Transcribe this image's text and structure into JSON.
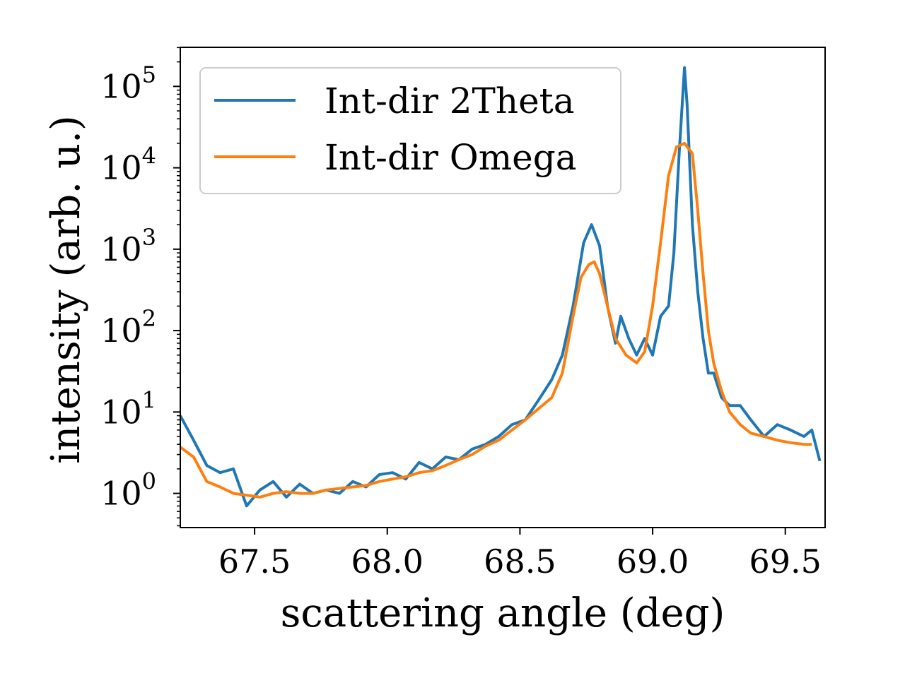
{
  "chart_data": {
    "type": "line",
    "xlabel": "scattering angle (deg)",
    "ylabel": "intensity (arb. u.)",
    "xlim": [
      67.22,
      69.65
    ],
    "ylim_log10": [
      -0.42,
      5.48
    ],
    "yscale": "log",
    "grid": false,
    "legend_position": "top-left",
    "x_ticks": [
      67.5,
      68.0,
      68.5,
      69.0,
      69.5
    ],
    "x_tick_labels": [
      "67.5",
      "68.0",
      "68.5",
      "69.0",
      "69.5"
    ],
    "y_ticks": [
      0,
      1,
      2,
      3,
      4,
      5
    ],
    "y_tick_labels": [
      "10^0",
      "10^1",
      "10^2",
      "10^3",
      "10^4",
      "10^5"
    ],
    "series": [
      {
        "name": "Int-dir 2Theta",
        "color": "#1f77b4",
        "x": [
          67.22,
          67.27,
          67.32,
          67.37,
          67.42,
          67.47,
          67.52,
          67.57,
          67.62,
          67.67,
          67.72,
          67.77,
          67.82,
          67.87,
          67.92,
          67.97,
          68.02,
          68.07,
          68.12,
          68.17,
          68.22,
          68.27,
          68.32,
          68.37,
          68.42,
          68.47,
          68.52,
          68.57,
          68.62,
          68.66,
          68.7,
          68.74,
          68.77,
          68.8,
          68.83,
          68.86,
          68.88,
          68.91,
          68.94,
          68.97,
          69.0,
          69.03,
          69.06,
          69.08,
          69.1,
          69.12,
          69.13,
          69.15,
          69.17,
          69.19,
          69.21,
          69.23,
          69.26,
          69.29,
          69.33,
          69.37,
          69.42,
          69.47,
          69.52,
          69.57,
          69.6,
          69.63
        ],
        "y": [
          9,
          4.5,
          2.2,
          1.8,
          2.0,
          0.7,
          1.1,
          1.4,
          0.9,
          1.3,
          1.0,
          1.1,
          1.0,
          1.4,
          1.2,
          1.7,
          1.8,
          1.5,
          2.4,
          2.0,
          2.8,
          2.6,
          3.5,
          4.0,
          5.0,
          7.0,
          8.0,
          14,
          25,
          50,
          200,
          1200,
          2000,
          1100,
          200,
          70,
          150,
          80,
          50,
          80,
          50,
          150,
          200,
          900,
          15000,
          170000,
          60000,
          2000,
          300,
          80,
          30,
          30,
          15,
          12,
          12,
          8,
          5,
          7,
          6,
          5,
          6,
          2.5
        ]
      },
      {
        "name": "Int-dir Omega",
        "color": "#ff7f0e",
        "x": [
          67.22,
          67.27,
          67.32,
          67.37,
          67.42,
          67.47,
          67.52,
          67.57,
          67.62,
          67.67,
          67.72,
          67.77,
          67.82,
          67.87,
          67.92,
          67.97,
          68.02,
          68.07,
          68.12,
          68.17,
          68.22,
          68.27,
          68.32,
          68.37,
          68.42,
          68.47,
          68.52,
          68.57,
          68.62,
          68.66,
          68.7,
          68.73,
          68.76,
          68.78,
          68.8,
          68.83,
          68.86,
          68.9,
          68.94,
          68.97,
          69.0,
          69.03,
          69.06,
          69.09,
          69.12,
          69.15,
          69.17,
          69.19,
          69.21,
          69.23,
          69.26,
          69.29,
          69.33,
          69.37,
          69.42,
          69.47,
          69.52,
          69.57,
          69.6
        ],
        "y": [
          3.7,
          2.8,
          1.4,
          1.2,
          1.0,
          0.95,
          0.9,
          1.0,
          1.05,
          1.0,
          1.0,
          1.1,
          1.15,
          1.2,
          1.25,
          1.4,
          1.5,
          1.6,
          1.8,
          1.9,
          2.2,
          2.6,
          3.0,
          3.8,
          4.5,
          6.0,
          8.0,
          11,
          15,
          30,
          150,
          450,
          650,
          700,
          500,
          200,
          80,
          50,
          40,
          55,
          200,
          1200,
          8000,
          18000,
          20000,
          15000,
          3000,
          500,
          100,
          40,
          18,
          10,
          7,
          5.5,
          5,
          4.5,
          4.2,
          4.0,
          4.0
        ]
      }
    ]
  }
}
